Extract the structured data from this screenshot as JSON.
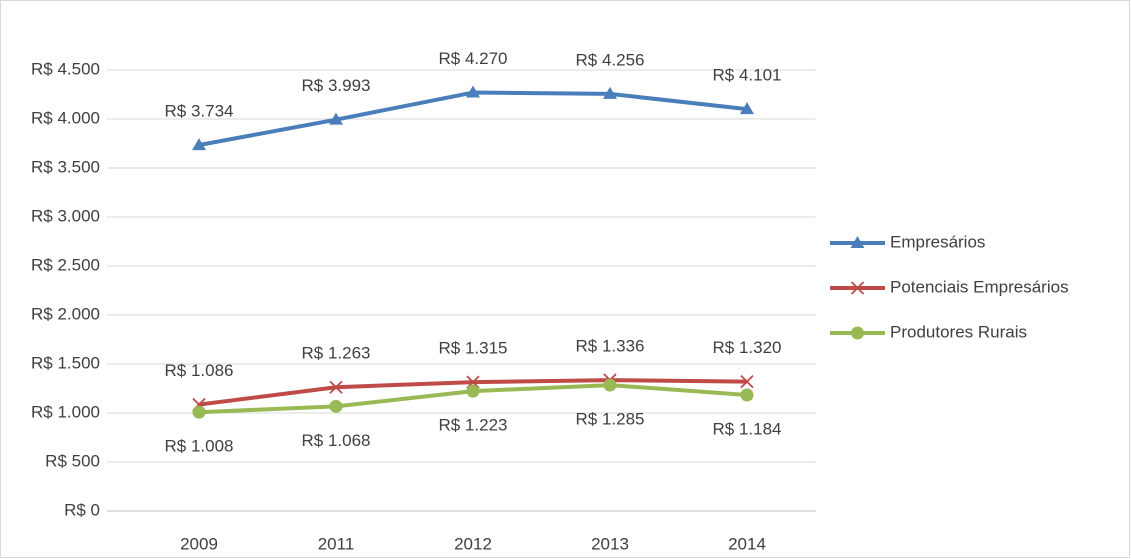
{
  "chart_data": {
    "type": "line",
    "categories": [
      "2009",
      "2011",
      "2012",
      "2013",
      "2014"
    ],
    "series": [
      {
        "name": "Empresários",
        "color": "#4a7ebb",
        "marker": "triangle",
        "label_position": "above",
        "values": [
          3734,
          3993,
          4270,
          4256,
          4101
        ],
        "value_labels": [
          "R$ 3.734",
          "R$ 3.993",
          "R$ 4.270",
          "R$ 4.256",
          "R$ 4.101"
        ]
      },
      {
        "name": "Potenciais Empresários",
        "color": "#be4b48",
        "marker": "x",
        "label_position": "above",
        "values": [
          1086,
          1263,
          1315,
          1336,
          1320
        ],
        "value_labels": [
          "R$ 1.086",
          "R$ 1.263",
          "R$ 1.315",
          "R$ 1.336",
          "R$ 1.320"
        ]
      },
      {
        "name": "Produtores Rurais",
        "color": "#98b954",
        "marker": "circle",
        "label_position": "below",
        "values": [
          1008,
          1068,
          1223,
          1285,
          1184
        ],
        "value_labels": [
          "R$ 1.008",
          "R$ 1.068",
          "R$ 1.223",
          "R$ 1.285",
          "R$ 1.184"
        ]
      }
    ],
    "ylim": [
      0,
      4500
    ],
    "yticks": [
      {
        "value": 0,
        "label": "R$ 0"
      },
      {
        "value": 500,
        "label": "R$ 500"
      },
      {
        "value": 1000,
        "label": "R$ 1.000"
      },
      {
        "value": 1500,
        "label": "R$ 1.500"
      },
      {
        "value": 2000,
        "label": "R$ 2.000"
      },
      {
        "value": 2500,
        "label": "R$ 2.500"
      },
      {
        "value": 3000,
        "label": "R$ 3.000"
      },
      {
        "value": 3500,
        "label": "R$ 3.500"
      },
      {
        "value": 4000,
        "label": "R$ 4.000"
      },
      {
        "value": 4500,
        "label": "R$ 4.500"
      }
    ],
    "grid": true,
    "legend": "right"
  }
}
